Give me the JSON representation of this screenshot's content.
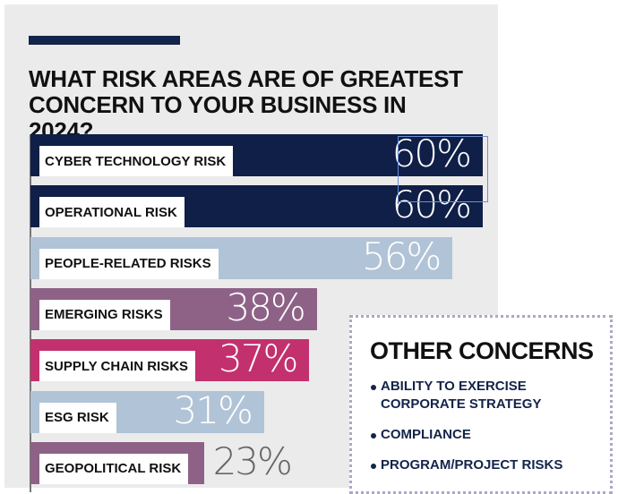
{
  "title": "WHAT RISK AREAS ARE OF GREATEST CONCERN TO YOUR BUSINESS IN 2024?",
  "chart_data": {
    "type": "bar",
    "orientation": "horizontal",
    "title": "WHAT RISK AREAS ARE OF GREATEST CONCERN TO YOUR BUSINESS IN 2024?",
    "categories": [
      "CYBER TECHNOLOGY RISK",
      "OPERATIONAL RISK",
      "PEOPLE-RELATED RISKS",
      "EMERGING RISKS",
      "SUPPLY CHAIN RISKS",
      "ESG RISK",
      "GEOPOLITICAL RISK"
    ],
    "values": [
      60,
      60,
      56,
      38,
      37,
      31,
      23
    ],
    "value_labels": [
      "60%",
      "60%",
      "56%",
      "38%",
      "37%",
      "31%",
      "23%"
    ],
    "colors": [
      "#0f1f47",
      "#0f1f47",
      "#b1c3d6",
      "#8e6287",
      "#c3306e",
      "#b1c3d6",
      "#8e6287"
    ],
    "xlim": [
      0,
      100
    ],
    "grid": false,
    "unit": "%"
  },
  "other_concerns": {
    "heading": "OTHER CONCERNS",
    "items": [
      "ABILITY TO EXERCISE CORPORATE STRATEGY",
      "COMPLIANCE",
      "PROGRAM/PROJECT RISKS"
    ]
  }
}
